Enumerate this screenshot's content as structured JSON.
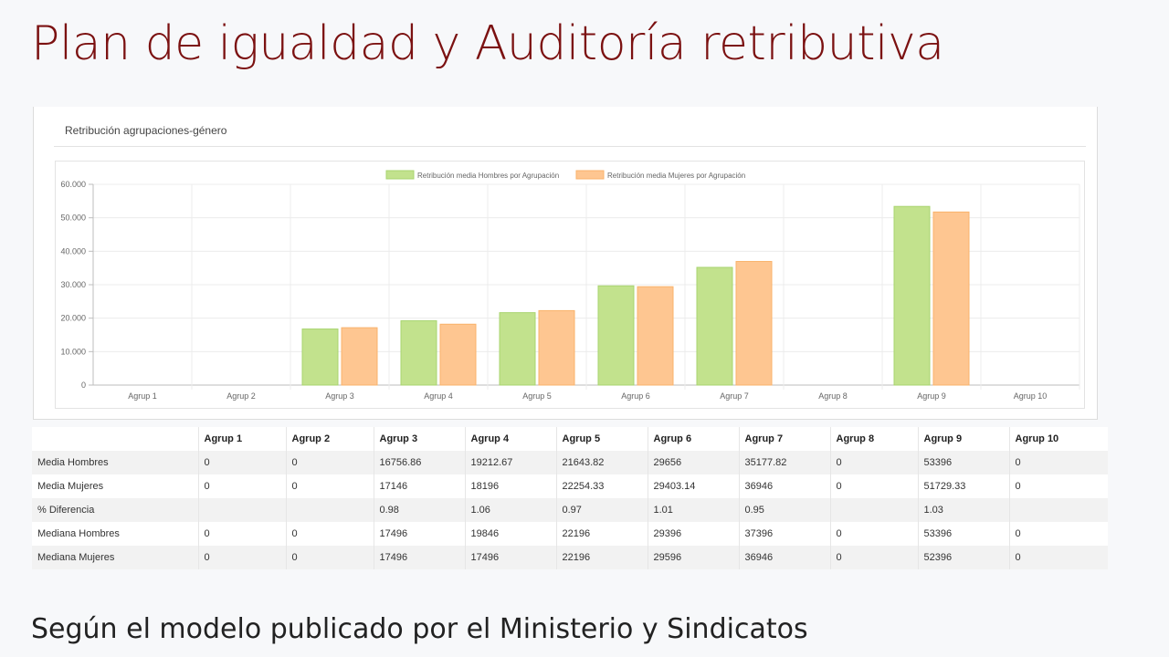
{
  "slide": {
    "title": "Plan de igualdad y Auditoría retributiva",
    "subtitle": "Según el modelo publicado por el Ministerio y Sindicatos"
  },
  "card": {
    "title": "Retribución agrupaciones-género"
  },
  "colors": {
    "men_fill": "#c2e28d",
    "men_stroke": "#a8d46f",
    "women_fill": "#fec691",
    "women_stroke": "#f9b36b",
    "title": "#7b1111"
  },
  "chart_data": {
    "type": "bar",
    "categories": [
      "Agrup 1",
      "Agrup 2",
      "Agrup 3",
      "Agrup 4",
      "Agrup 5",
      "Agrup 6",
      "Agrup 7",
      "Agrup 8",
      "Agrup 9",
      "Agrup 10"
    ],
    "series": [
      {
        "name": "Retribución media Hombres por Agrupación",
        "values": [
          0,
          0,
          16756.86,
          19212.67,
          21643.82,
          29656,
          35177.82,
          0,
          53396,
          0
        ]
      },
      {
        "name": "Retribución media Mujeres por Agrupación",
        "values": [
          0,
          0,
          17146,
          18196,
          22254.33,
          29403.14,
          36946,
          0,
          51729.33,
          0
        ]
      }
    ],
    "yticks": [
      "0",
      "10.000",
      "20.000",
      "30.000",
      "40.000",
      "50.000",
      "60.000"
    ],
    "ylim": [
      0,
      60000
    ],
    "grid": true,
    "legend": "top"
  },
  "table": {
    "headers": [
      "",
      "Agrup 1",
      "Agrup 2",
      "Agrup 3",
      "Agrup 4",
      "Agrup 5",
      "Agrup 6",
      "Agrup 7",
      "Agrup 8",
      "Agrup 9",
      "Agrup 10"
    ],
    "rows": [
      [
        "Media Hombres",
        "0",
        "0",
        "16756.86",
        "19212.67",
        "21643.82",
        "29656",
        "35177.82",
        "0",
        "53396",
        "0"
      ],
      [
        "Media Mujeres",
        "0",
        "0",
        "17146",
        "18196",
        "22254.33",
        "29403.14",
        "36946",
        "0",
        "51729.33",
        "0"
      ],
      [
        "% Diferencia",
        "",
        "",
        "0.98",
        "1.06",
        "0.97",
        "1.01",
        "0.95",
        "",
        "1.03",
        ""
      ],
      [
        "Mediana Hombres",
        "0",
        "0",
        "17496",
        "19846",
        "22196",
        "29396",
        "37396",
        "0",
        "53396",
        "0"
      ],
      [
        "Mediana Mujeres",
        "0",
        "0",
        "17496",
        "17496",
        "22196",
        "29596",
        "36946",
        "0",
        "52396",
        "0"
      ]
    ]
  }
}
